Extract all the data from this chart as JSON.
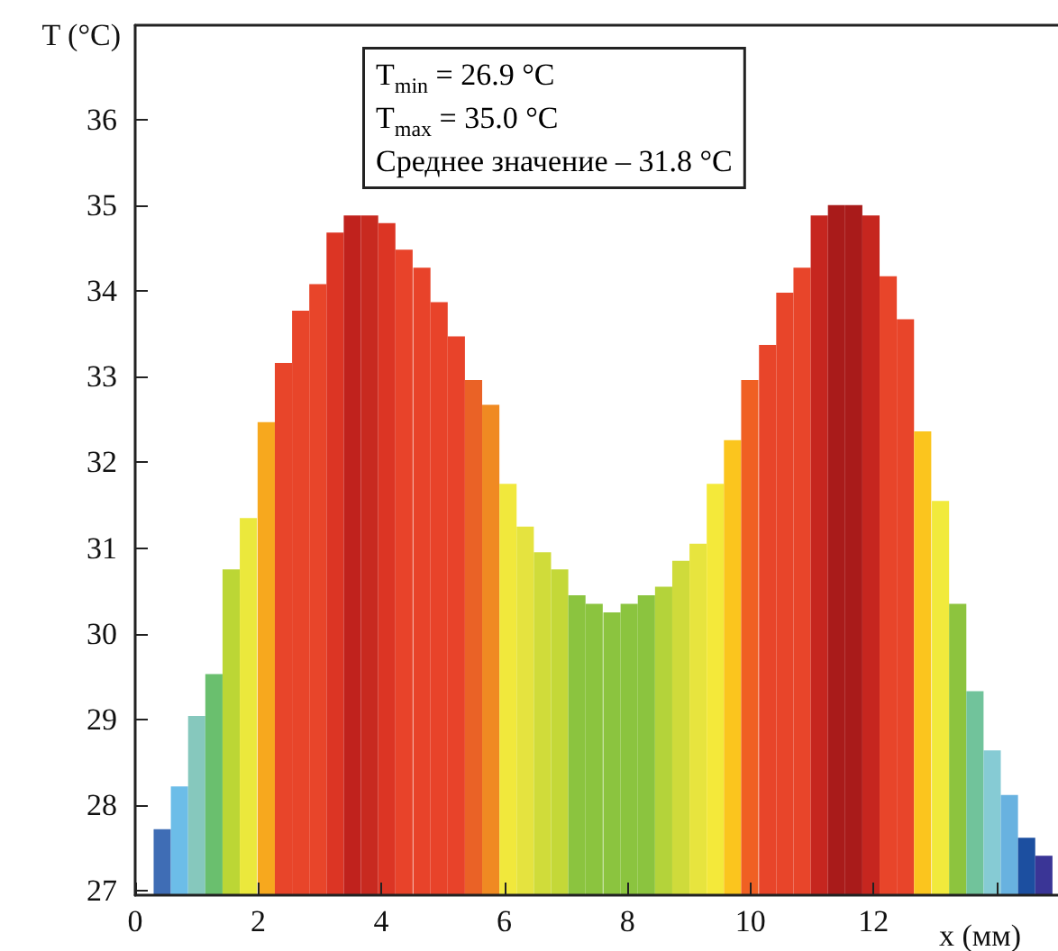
{
  "chart_data": {
    "type": "bar",
    "xlabel": "x (мм)",
    "ylabel": "T (°C)",
    "annotations": [
      "T$_{min}$ = 26.9 °C",
      "T$_{max}$ = 35.0 °C",
      "Среднее значение – 31.8 °C"
    ],
    "x": [
      0.44,
      0.72,
      1.0,
      1.28,
      1.56,
      1.84,
      2.13,
      2.41,
      2.69,
      2.97,
      3.25,
      3.53,
      3.81,
      4.09,
      4.37,
      4.66,
      4.94,
      5.22,
      5.5,
      5.78,
      6.06,
      6.34,
      6.62,
      6.9,
      7.18,
      7.46,
      7.75,
      8.03,
      8.31,
      8.59,
      8.87,
      9.15,
      9.43,
      9.71,
      9.99,
      10.28,
      10.56,
      10.84,
      11.12,
      11.4,
      11.68,
      11.96,
      12.24,
      12.52,
      12.8,
      13.09,
      13.37,
      13.65,
      13.93,
      14.21,
      14.49,
      14.77
    ],
    "values": [
      27.72,
      28.22,
      29.04,
      29.53,
      30.75,
      31.35,
      32.47,
      33.16,
      33.77,
      34.08,
      34.68,
      34.88,
      34.88,
      34.79,
      34.48,
      34.27,
      33.87,
      33.47,
      32.96,
      32.67,
      31.75,
      31.25,
      30.95,
      30.75,
      30.45,
      30.35,
      30.25,
      30.35,
      30.45,
      30.55,
      30.85,
      31.05,
      31.75,
      32.26,
      32.96,
      33.37,
      33.98,
      34.27,
      34.88,
      35.0,
      35.0,
      34.88,
      34.17,
      33.67,
      32.36,
      31.55,
      30.35,
      29.33,
      28.64,
      28.12,
      27.62,
      27.41
    ],
    "colors": [
      "#3f6db5",
      "#6cbde8",
      "#86c8bd",
      "#6abf6e",
      "#bcd635",
      "#ebe83c",
      "#f7a81e",
      "#e8452a",
      "#e8452a",
      "#e8452a",
      "#dc3524",
      "#c0221d",
      "#c82a20",
      "#dc3524",
      "#e8432a",
      "#e8432a",
      "#e8432a",
      "#e8432a",
      "#ea6226",
      "#f08a22",
      "#f1e83c",
      "#e5e33f",
      "#d0dc3a",
      "#c4d838",
      "#8bc43f",
      "#8bc43f",
      "#8bc43f",
      "#8bc43f",
      "#8bc43f",
      "#b4d33a",
      "#cfdb3b",
      "#e7e43e",
      "#f4e93a",
      "#fbc51e",
      "#f06023",
      "#e8452a",
      "#e8452a",
      "#e8452a",
      "#c6261f",
      "#a91b1a",
      "#a91b1a",
      "#c6261f",
      "#e8452a",
      "#e8452a",
      "#fbc51e",
      "#f1ea3c",
      "#8dc43e",
      "#71c39b",
      "#86cbd4",
      "#68b2e0",
      "#1c4fa0",
      "#3a3596"
    ],
    "xlim": [
      0,
      15
    ],
    "xticks": [
      0,
      2,
      4,
      6,
      8,
      10,
      12,
      {
        "value": 14,
        "label": null
      }
    ],
    "ylim": [
      26.95,
      37.1
    ],
    "yticks": [
      27,
      28,
      29,
      30,
      31,
      32,
      33,
      34,
      35,
      36
    ],
    "grid": false
  }
}
